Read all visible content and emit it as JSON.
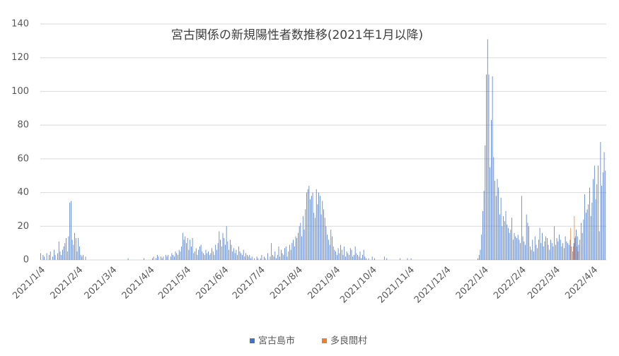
{
  "chart_data": {
    "type": "bar",
    "title": "宮古関係の新規陽性者数推移(2021年1月以降)",
    "categories": [
      "2021/1/4",
      null,
      null,
      null,
      null,
      null,
      null,
      null,
      null,
      null,
      null,
      null,
      null,
      null,
      null,
      null,
      null,
      null,
      null,
      null,
      null,
      null,
      null,
      null,
      null,
      null,
      null,
      null,
      null,
      null,
      null,
      "2021/2/4",
      null,
      null,
      null,
      null,
      null,
      null,
      null,
      null,
      null,
      null,
      null,
      null,
      null,
      null,
      null,
      null,
      null,
      null,
      null,
      null,
      null,
      null,
      null,
      null,
      null,
      null,
      null,
      "2021/3/4",
      null,
      null,
      null,
      null,
      null,
      null,
      null,
      null,
      null,
      null,
      null,
      null,
      null,
      null,
      null,
      null,
      null,
      null,
      null,
      null,
      null,
      null,
      null,
      null,
      null,
      null,
      null,
      null,
      null,
      null,
      "2021/4/4",
      null,
      null,
      null,
      null,
      null,
      null,
      null,
      null,
      null,
      null,
      null,
      null,
      null,
      null,
      null,
      null,
      null,
      null,
      null,
      null,
      null,
      null,
      null,
      null,
      null,
      null,
      null,
      null,
      null,
      "2021/5/4",
      null,
      null,
      null,
      null,
      null,
      null,
      null,
      null,
      null,
      null,
      null,
      null,
      null,
      null,
      null,
      null,
      null,
      null,
      null,
      null,
      null,
      null,
      null,
      null,
      null,
      null,
      null,
      null,
      null,
      null,
      "2021/6/4",
      null,
      null,
      null,
      null,
      null,
      null,
      null,
      null,
      null,
      null,
      null,
      null,
      null,
      null,
      null,
      null,
      null,
      null,
      null,
      null,
      null,
      null,
      null,
      null,
      null,
      null,
      null,
      null,
      null,
      "2021/7/4",
      null,
      null,
      null,
      null,
      null,
      null,
      null,
      null,
      null,
      null,
      null,
      null,
      null,
      null,
      null,
      null,
      null,
      null,
      null,
      null,
      null,
      null,
      null,
      null,
      null,
      null,
      null,
      null,
      null,
      null,
      "2021/8/4",
      null,
      null,
      null,
      null,
      null,
      null,
      null,
      null,
      null,
      null,
      null,
      null,
      null,
      null,
      null,
      null,
      null,
      null,
      null,
      null,
      null,
      null,
      null,
      null,
      null,
      null,
      null,
      null,
      null,
      null,
      "2021/9/4",
      null,
      null,
      null,
      null,
      null,
      null,
      null,
      null,
      null,
      null,
      null,
      null,
      null,
      null,
      null,
      null,
      null,
      null,
      null,
      null,
      null,
      null,
      null,
      null,
      null,
      null,
      null,
      null,
      null,
      "2021/10/4",
      null,
      null,
      null,
      null,
      null,
      null,
      null,
      null,
      null,
      null,
      null,
      null,
      null,
      null,
      null,
      null,
      null,
      null,
      null,
      null,
      null,
      null,
      null,
      null,
      null,
      null,
      null,
      null,
      null,
      null,
      "2021/11/4",
      null,
      null,
      null,
      null,
      null,
      null,
      null,
      null,
      null,
      null,
      null,
      null,
      null,
      null,
      null,
      null,
      null,
      null,
      null,
      null,
      null,
      null,
      null,
      null,
      null,
      null,
      null,
      null,
      null,
      "2021/12/4",
      null,
      null,
      null,
      null,
      null,
      null,
      null,
      null,
      null,
      null,
      null,
      null,
      null,
      null,
      null,
      null,
      null,
      null,
      null,
      null,
      null,
      null,
      null,
      null,
      null,
      null,
      null,
      null,
      null,
      null,
      "2022/1/4",
      null,
      null,
      null,
      null,
      null,
      null,
      null,
      null,
      null,
      null,
      null,
      null,
      null,
      null,
      null,
      null,
      null,
      null,
      null,
      null,
      null,
      null,
      null,
      null,
      null,
      null,
      null,
      null,
      null,
      null,
      "2022/2/4",
      null,
      null,
      null,
      null,
      null,
      null,
      null,
      null,
      null,
      null,
      null,
      null,
      null,
      null,
      null,
      null,
      null,
      null,
      null,
      null,
      null,
      null,
      null,
      null,
      null,
      null,
      null,
      "2022/3/4",
      null,
      null,
      null,
      null,
      null,
      null,
      null,
      null,
      null,
      null,
      null,
      null,
      null,
      null,
      null,
      null,
      null,
      null,
      null,
      null,
      null,
      null,
      null,
      null,
      null,
      null,
      null,
      null,
      null,
      null,
      "2022/4/4",
      null,
      null,
      null,
      null,
      null,
      null,
      null,
      null,
      null,
      null
    ],
    "series": [
      {
        "name": "宮古島市",
        "color": "#4472c4",
        "values": [
          4,
          0,
          3,
          2,
          0,
          4,
          0,
          3,
          5,
          0,
          2,
          6,
          3,
          0,
          4,
          11,
          5,
          3,
          6,
          8,
          10,
          13,
          5,
          14,
          34,
          35,
          12,
          9,
          16,
          13,
          5,
          13,
          8,
          3,
          2,
          3,
          0,
          2,
          0,
          0,
          0,
          0,
          0,
          0,
          0,
          0,
          0,
          0,
          0,
          0,
          0,
          0,
          0,
          0,
          0,
          0,
          0,
          0,
          0,
          0,
          0,
          0,
          0,
          0,
          0,
          0,
          0,
          0,
          0,
          0,
          0,
          0,
          1,
          0,
          0,
          0,
          0,
          0,
          0,
          0,
          0,
          0,
          0,
          0,
          0,
          1,
          0,
          0,
          0,
          0,
          0,
          0,
          1,
          2,
          0,
          1,
          3,
          2,
          0,
          2,
          1,
          2,
          0,
          3,
          2,
          3,
          0,
          2,
          4,
          3,
          2,
          5,
          4,
          3,
          6,
          5,
          8,
          16,
          12,
          14,
          10,
          13,
          6,
          12,
          8,
          13,
          4,
          5,
          7,
          3,
          6,
          8,
          9,
          5,
          4,
          3,
          6,
          4,
          5,
          3,
          4,
          7,
          5,
          3,
          9,
          6,
          10,
          17,
          12,
          8,
          16,
          13,
          9,
          20,
          11,
          6,
          12,
          9,
          5,
          7,
          4,
          6,
          3,
          8,
          5,
          4,
          3,
          6,
          2,
          4,
          3,
          2,
          3,
          1,
          2,
          0,
          1,
          0,
          2,
          1,
          0,
          1,
          3,
          0,
          2,
          1,
          0,
          4,
          0,
          2,
          10,
          3,
          2,
          5,
          1,
          3,
          8,
          2,
          6,
          4,
          3,
          7,
          8,
          2,
          5,
          9,
          6,
          10,
          12,
          8,
          14,
          13,
          16,
          20,
          22,
          14,
          26,
          18,
          30,
          40,
          42,
          44,
          36,
          38,
          40,
          28,
          25,
          42,
          33,
          40,
          38,
          27,
          35,
          30,
          25,
          20,
          15,
          12,
          9,
          18,
          14,
          8,
          6,
          5,
          3,
          7,
          4,
          9,
          6,
          3,
          8,
          2,
          5,
          4,
          3,
          7,
          6,
          2,
          3,
          8,
          4,
          3,
          2,
          5,
          1,
          3,
          6,
          2,
          1,
          0,
          1,
          0,
          0,
          2,
          0,
          1,
          0,
          0,
          0,
          0,
          0,
          0,
          0,
          2,
          0,
          1,
          0,
          0,
          0,
          0,
          0,
          0,
          0,
          0,
          0,
          0,
          1,
          0,
          0,
          0,
          0,
          0,
          1,
          0,
          0,
          1,
          0,
          0,
          0,
          0,
          0,
          0,
          0,
          0,
          0,
          0,
          0,
          0,
          0,
          0,
          0,
          0,
          0,
          0,
          0,
          0,
          0,
          0,
          0,
          0,
          0,
          0,
          0,
          0,
          0,
          0,
          0,
          0,
          0,
          0,
          0,
          0,
          0,
          0,
          0,
          0,
          0,
          0,
          0,
          0,
          0,
          0,
          0,
          0,
          0,
          0,
          0,
          0,
          0,
          0,
          1,
          3,
          6,
          15,
          29,
          41,
          68,
          110,
          131,
          110,
          55,
          83,
          109,
          61,
          47,
          38,
          48,
          43,
          27,
          37,
          20,
          26,
          23,
          29,
          21,
          19,
          16,
          18,
          25,
          12,
          16,
          14,
          13,
          15,
          12,
          10,
          38,
          14,
          11,
          9,
          27,
          22,
          20,
          8,
          6,
          12,
          5,
          14,
          9,
          7,
          12,
          19,
          10,
          16,
          8,
          11,
          14,
          13,
          9,
          6,
          12,
          10,
          8,
          20,
          9,
          13,
          11,
          15,
          12,
          8,
          10,
          7,
          14,
          11,
          10,
          9,
          12,
          8,
          5,
          10,
          13,
          18,
          14,
          9,
          12,
          22,
          16,
          24,
          39,
          28,
          30,
          33,
          43,
          26,
          34,
          48,
          56,
          36,
          45,
          56,
          17,
          70,
          44,
          52,
          64,
          53
        ]
      },
      {
        "name": "多良間村",
        "color": "#ed7d31",
        "values": [
          0,
          0,
          0,
          0,
          0,
          0,
          0,
          0,
          0,
          0,
          0,
          0,
          0,
          0,
          0,
          0,
          0,
          0,
          0,
          0,
          0,
          0,
          0,
          0,
          0,
          0,
          0,
          0,
          0,
          0,
          0,
          0,
          0,
          0,
          0,
          0,
          0,
          0,
          0,
          0,
          0,
          0,
          0,
          0,
          0,
          0,
          0,
          0,
          0,
          0,
          0,
          0,
          0,
          0,
          0,
          0,
          0,
          0,
          0,
          0,
          0,
          0,
          0,
          0,
          0,
          0,
          0,
          0,
          0,
          0,
          0,
          0,
          0,
          0,
          0,
          0,
          0,
          0,
          0,
          0,
          0,
          0,
          0,
          0,
          0,
          0,
          0,
          0,
          0,
          0,
          0,
          0,
          0,
          0,
          0,
          0,
          0,
          0,
          0,
          0,
          0,
          0,
          0,
          0,
          0,
          0,
          0,
          0,
          0,
          0,
          0,
          0,
          0,
          0,
          0,
          0,
          0,
          0,
          0,
          0,
          0,
          0,
          0,
          0,
          0,
          0,
          0,
          0,
          0,
          0,
          0,
          0,
          0,
          0,
          0,
          0,
          0,
          0,
          0,
          0,
          0,
          0,
          0,
          0,
          0,
          0,
          0,
          0,
          0,
          0,
          0,
          0,
          0,
          0,
          0,
          0,
          0,
          0,
          0,
          0,
          0,
          0,
          0,
          0,
          0,
          0,
          0,
          0,
          0,
          0,
          0,
          0,
          0,
          0,
          0,
          0,
          0,
          0,
          0,
          0,
          0,
          0,
          0,
          0,
          0,
          0,
          0,
          0,
          0,
          0,
          0,
          0,
          0,
          0,
          0,
          0,
          0,
          0,
          0,
          0,
          0,
          0,
          0,
          0,
          0,
          0,
          0,
          0,
          0,
          0,
          0,
          0,
          0,
          0,
          0,
          0,
          0,
          0,
          0,
          0,
          0,
          0,
          0,
          0,
          0,
          0,
          0,
          0,
          0,
          0,
          0,
          0,
          0,
          0,
          0,
          0,
          0,
          0,
          0,
          0,
          0,
          0,
          0,
          0,
          0,
          0,
          0,
          0,
          0,
          0,
          0,
          0,
          0,
          0,
          0,
          0,
          0,
          0,
          0,
          0,
          0,
          0,
          0,
          0,
          0,
          0,
          0,
          0,
          0,
          0,
          0,
          0,
          0,
          0,
          0,
          0,
          0,
          0,
          0,
          0,
          0,
          0,
          0,
          0,
          0,
          0,
          0,
          0,
          0,
          0,
          0,
          0,
          0,
          0,
          0,
          0,
          0,
          0,
          0,
          0,
          0,
          0,
          0,
          0,
          0,
          0,
          0,
          0,
          0,
          0,
          0,
          0,
          0,
          0,
          0,
          0,
          0,
          0,
          0,
          0,
          0,
          0,
          0,
          0,
          0,
          0,
          0,
          0,
          0,
          0,
          0,
          0,
          0,
          0,
          0,
          0,
          0,
          0,
          0,
          0,
          0,
          0,
          0,
          0,
          0,
          0,
          0,
          0,
          0,
          0,
          0,
          0,
          0,
          0,
          0,
          0,
          0,
          0,
          0,
          0,
          0,
          0,
          0,
          0,
          0,
          0,
          0,
          0,
          0,
          0,
          0,
          0,
          0,
          0,
          0,
          0,
          0,
          0,
          0,
          0,
          0,
          0,
          0,
          0,
          0,
          0,
          0,
          0,
          0,
          0,
          0,
          0,
          0,
          0,
          0,
          0,
          0,
          0,
          0,
          0,
          0,
          0,
          0,
          0,
          0,
          0,
          0,
          0,
          0,
          0,
          0,
          0,
          0,
          0,
          0,
          0,
          0,
          0,
          0,
          0,
          0,
          0,
          0,
          0,
          0,
          0,
          0,
          0,
          0,
          0,
          0,
          0,
          0,
          0,
          0,
          0,
          19,
          0,
          8,
          26,
          14,
          8,
          5,
          0,
          0,
          0,
          0,
          0,
          0,
          0,
          0,
          0,
          0,
          0,
          0,
          0,
          0,
          0,
          0,
          0,
          0,
          0,
          0,
          0,
          0,
          0
        ]
      }
    ],
    "ylim": [
      0,
      140
    ],
    "yticks": [
      0,
      20,
      40,
      60,
      80,
      100,
      120,
      140
    ],
    "grid": true,
    "legend": "bottom"
  }
}
